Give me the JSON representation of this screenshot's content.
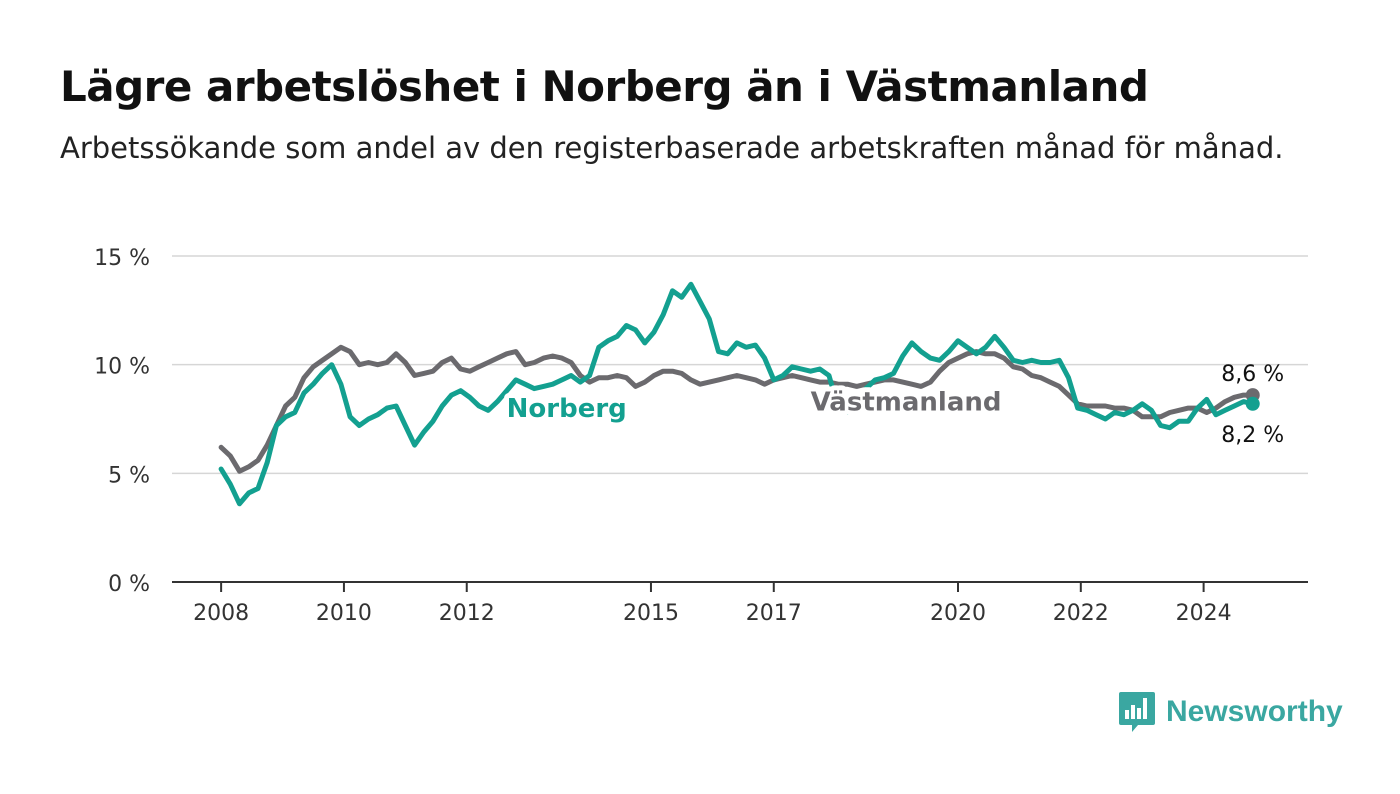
{
  "title": "Lägre arbetslöshet i Norberg än i Västmanland",
  "subtitle": "Arbetssökande som andel av den registerbaserade arbetskraften månad för månad.",
  "brand": {
    "name": "Newsworthy",
    "icon": "newsworthy-logo-icon"
  },
  "colors": {
    "norberg": "#13a090",
    "vastmanland": "#6b6a6e",
    "grid": "#d6d6d6",
    "axis": "#333333"
  },
  "chart_data": {
    "type": "line",
    "yticks": [
      "0 %",
      "5 %",
      "10 %",
      "15 %"
    ],
    "ytick_values": [
      0,
      5,
      10,
      15
    ],
    "xticks": [
      "2008",
      "2010",
      "2012",
      "2015",
      "2017",
      "2020",
      "2022",
      "2024"
    ],
    "xtick_values": [
      2008,
      2010,
      2012,
      2015,
      2017,
      2020,
      2022,
      2024
    ],
    "ylim": [
      0,
      15
    ],
    "xlim": [
      2007.2,
      2025.7
    ],
    "grid": true,
    "end_labels": {
      "vastmanland": "8,6 %",
      "norberg": "8,2 %"
    },
    "series": [
      {
        "name": "Norberg",
        "label": "Norberg",
        "x": [
          2008.0,
          2008.15,
          2008.3,
          2008.45,
          2008.6,
          2008.75,
          2008.9,
          2009.05,
          2009.2,
          2009.35,
          2009.5,
          2009.65,
          2009.8,
          2009.95,
          2010.1,
          2010.25,
          2010.4,
          2010.55,
          2010.7,
          2010.85,
          2011.0,
          2011.15,
          2011.3,
          2011.45,
          2011.6,
          2011.75,
          2011.9,
          2012.05,
          2012.2,
          2012.35,
          2012.5,
          2012.65,
          2012.8,
          2012.95,
          2013.1,
          2013.25,
          2013.4,
          2013.55,
          2013.7,
          2013.85,
          2014.0,
          2014.15,
          2014.3,
          2014.45,
          2014.6,
          2014.75,
          2014.9,
          2015.05,
          2015.2,
          2015.35,
          2015.5,
          2015.65,
          2015.8,
          2015.95,
          2016.1,
          2016.25,
          2016.4,
          2016.55,
          2016.7,
          2016.85,
          2017.0,
          2017.15,
          2017.3,
          2017.45,
          2017.6,
          2017.75,
          2017.9,
          2018.05,
          2018.2,
          2018.35,
          2018.5,
          2018.65,
          2018.8,
          2018.95,
          2019.1,
          2019.25,
          2019.4,
          2019.55,
          2019.7,
          2019.85,
          2020.0,
          2020.15,
          2020.3,
          2020.45,
          2020.6,
          2020.75,
          2020.9,
          2021.05,
          2021.2,
          2021.35,
          2021.5,
          2021.65,
          2021.8,
          2021.95,
          2022.1,
          2022.25,
          2022.4,
          2022.55,
          2022.7,
          2022.85,
          2023.0,
          2023.15,
          2023.3,
          2023.45,
          2023.6,
          2023.75,
          2023.9,
          2024.05,
          2024.2,
          2024.35,
          2024.5,
          2024.65,
          2024.8
        ],
        "values": [
          5.2,
          4.5,
          3.6,
          4.1,
          4.3,
          5.5,
          7.2,
          7.6,
          7.8,
          8.7,
          9.1,
          9.6,
          10.0,
          9.1,
          7.6,
          7.2,
          7.5,
          7.7,
          8.0,
          8.1,
          7.2,
          6.3,
          6.9,
          7.4,
          8.1,
          8.6,
          8.8,
          8.5,
          8.1,
          7.9,
          8.3,
          8.8,
          9.3,
          9.1,
          8.9,
          9.0,
          9.1,
          9.3,
          9.5,
          9.2,
          9.5,
          10.8,
          11.1,
          11.3,
          11.8,
          11.6,
          11.0,
          11.5,
          12.3,
          13.4,
          13.1,
          13.7,
          12.9,
          12.1,
          10.6,
          10.5,
          11.0,
          10.8,
          10.9,
          10.3,
          9.3,
          9.5,
          9.9,
          9.8,
          9.7,
          9.8,
          9.5,
          8.0,
          7.8,
          8.3,
          8.9,
          9.3,
          9.4,
          9.6,
          10.4,
          11.0,
          10.6,
          10.3,
          10.2,
          10.6,
          11.1,
          10.8,
          10.5,
          10.8,
          11.3,
          10.8,
          10.2,
          10.1,
          10.2,
          10.1,
          10.1,
          10.2,
          9.4,
          8.0,
          7.9,
          7.7,
          7.5,
          7.8,
          7.7,
          7.9,
          8.2,
          7.9,
          7.2,
          7.1,
          7.4,
          7.4,
          8.0,
          8.4,
          7.7,
          7.9,
          8.1,
          8.3,
          8.2
        ]
      },
      {
        "name": "Västmanland",
        "label": "Västmanland",
        "x": [
          2008.0,
          2008.15,
          2008.3,
          2008.45,
          2008.6,
          2008.75,
          2008.9,
          2009.05,
          2009.2,
          2009.35,
          2009.5,
          2009.65,
          2009.8,
          2009.95,
          2010.1,
          2010.25,
          2010.4,
          2010.55,
          2010.7,
          2010.85,
          2011.0,
          2011.15,
          2011.3,
          2011.45,
          2011.6,
          2011.75,
          2011.9,
          2012.05,
          2012.2,
          2012.35,
          2012.5,
          2012.65,
          2012.8,
          2012.95,
          2013.1,
          2013.25,
          2013.4,
          2013.55,
          2013.7,
          2013.85,
          2014.0,
          2014.15,
          2014.3,
          2014.45,
          2014.6,
          2014.75,
          2014.9,
          2015.05,
          2015.2,
          2015.35,
          2015.5,
          2015.65,
          2015.8,
          2015.95,
          2016.1,
          2016.25,
          2016.4,
          2016.55,
          2016.7,
          2016.85,
          2017.0,
          2017.15,
          2017.3,
          2017.45,
          2017.6,
          2017.75,
          2017.9,
          2018.05,
          2018.2,
          2018.35,
          2018.5,
          2018.65,
          2018.8,
          2018.95,
          2019.1,
          2019.25,
          2019.4,
          2019.55,
          2019.7,
          2019.85,
          2020.0,
          2020.15,
          2020.3,
          2020.45,
          2020.6,
          2020.75,
          2020.9,
          2021.05,
          2021.2,
          2021.35,
          2021.5,
          2021.65,
          2021.8,
          2021.95,
          2022.1,
          2022.25,
          2022.4,
          2022.55,
          2022.7,
          2022.85,
          2023.0,
          2023.15,
          2023.3,
          2023.45,
          2023.6,
          2023.75,
          2023.9,
          2024.05,
          2024.2,
          2024.35,
          2024.5,
          2024.65,
          2024.8
        ],
        "values": [
          6.2,
          5.8,
          5.1,
          5.3,
          5.6,
          6.3,
          7.2,
          8.1,
          8.5,
          9.4,
          9.9,
          10.2,
          10.5,
          10.8,
          10.6,
          10.0,
          10.1,
          10.0,
          10.1,
          10.5,
          10.1,
          9.5,
          9.6,
          9.7,
          10.1,
          10.3,
          9.8,
          9.7,
          9.9,
          10.1,
          10.3,
          10.5,
          10.6,
          10.0,
          10.1,
          10.3,
          10.4,
          10.3,
          10.1,
          9.5,
          9.2,
          9.4,
          9.4,
          9.5,
          9.4,
          9.0,
          9.2,
          9.5,
          9.7,
          9.7,
          9.6,
          9.3,
          9.1,
          9.2,
          9.3,
          9.4,
          9.5,
          9.4,
          9.3,
          9.1,
          9.3,
          9.4,
          9.5,
          9.4,
          9.3,
          9.2,
          9.2,
          9.1,
          9.1,
          9.0,
          9.1,
          9.2,
          9.3,
          9.3,
          9.2,
          9.1,
          9.0,
          9.2,
          9.7,
          10.1,
          10.3,
          10.5,
          10.6,
          10.5,
          10.5,
          10.3,
          9.9,
          9.8,
          9.5,
          9.4,
          9.2,
          9.0,
          8.6,
          8.2,
          8.1,
          8.1,
          8.1,
          8.0,
          8.0,
          7.9,
          7.6,
          7.6,
          7.6,
          7.8,
          7.9,
          8.0,
          8.0,
          7.8,
          8.0,
          8.3,
          8.5,
          8.6,
          8.6
        ]
      }
    ]
  }
}
